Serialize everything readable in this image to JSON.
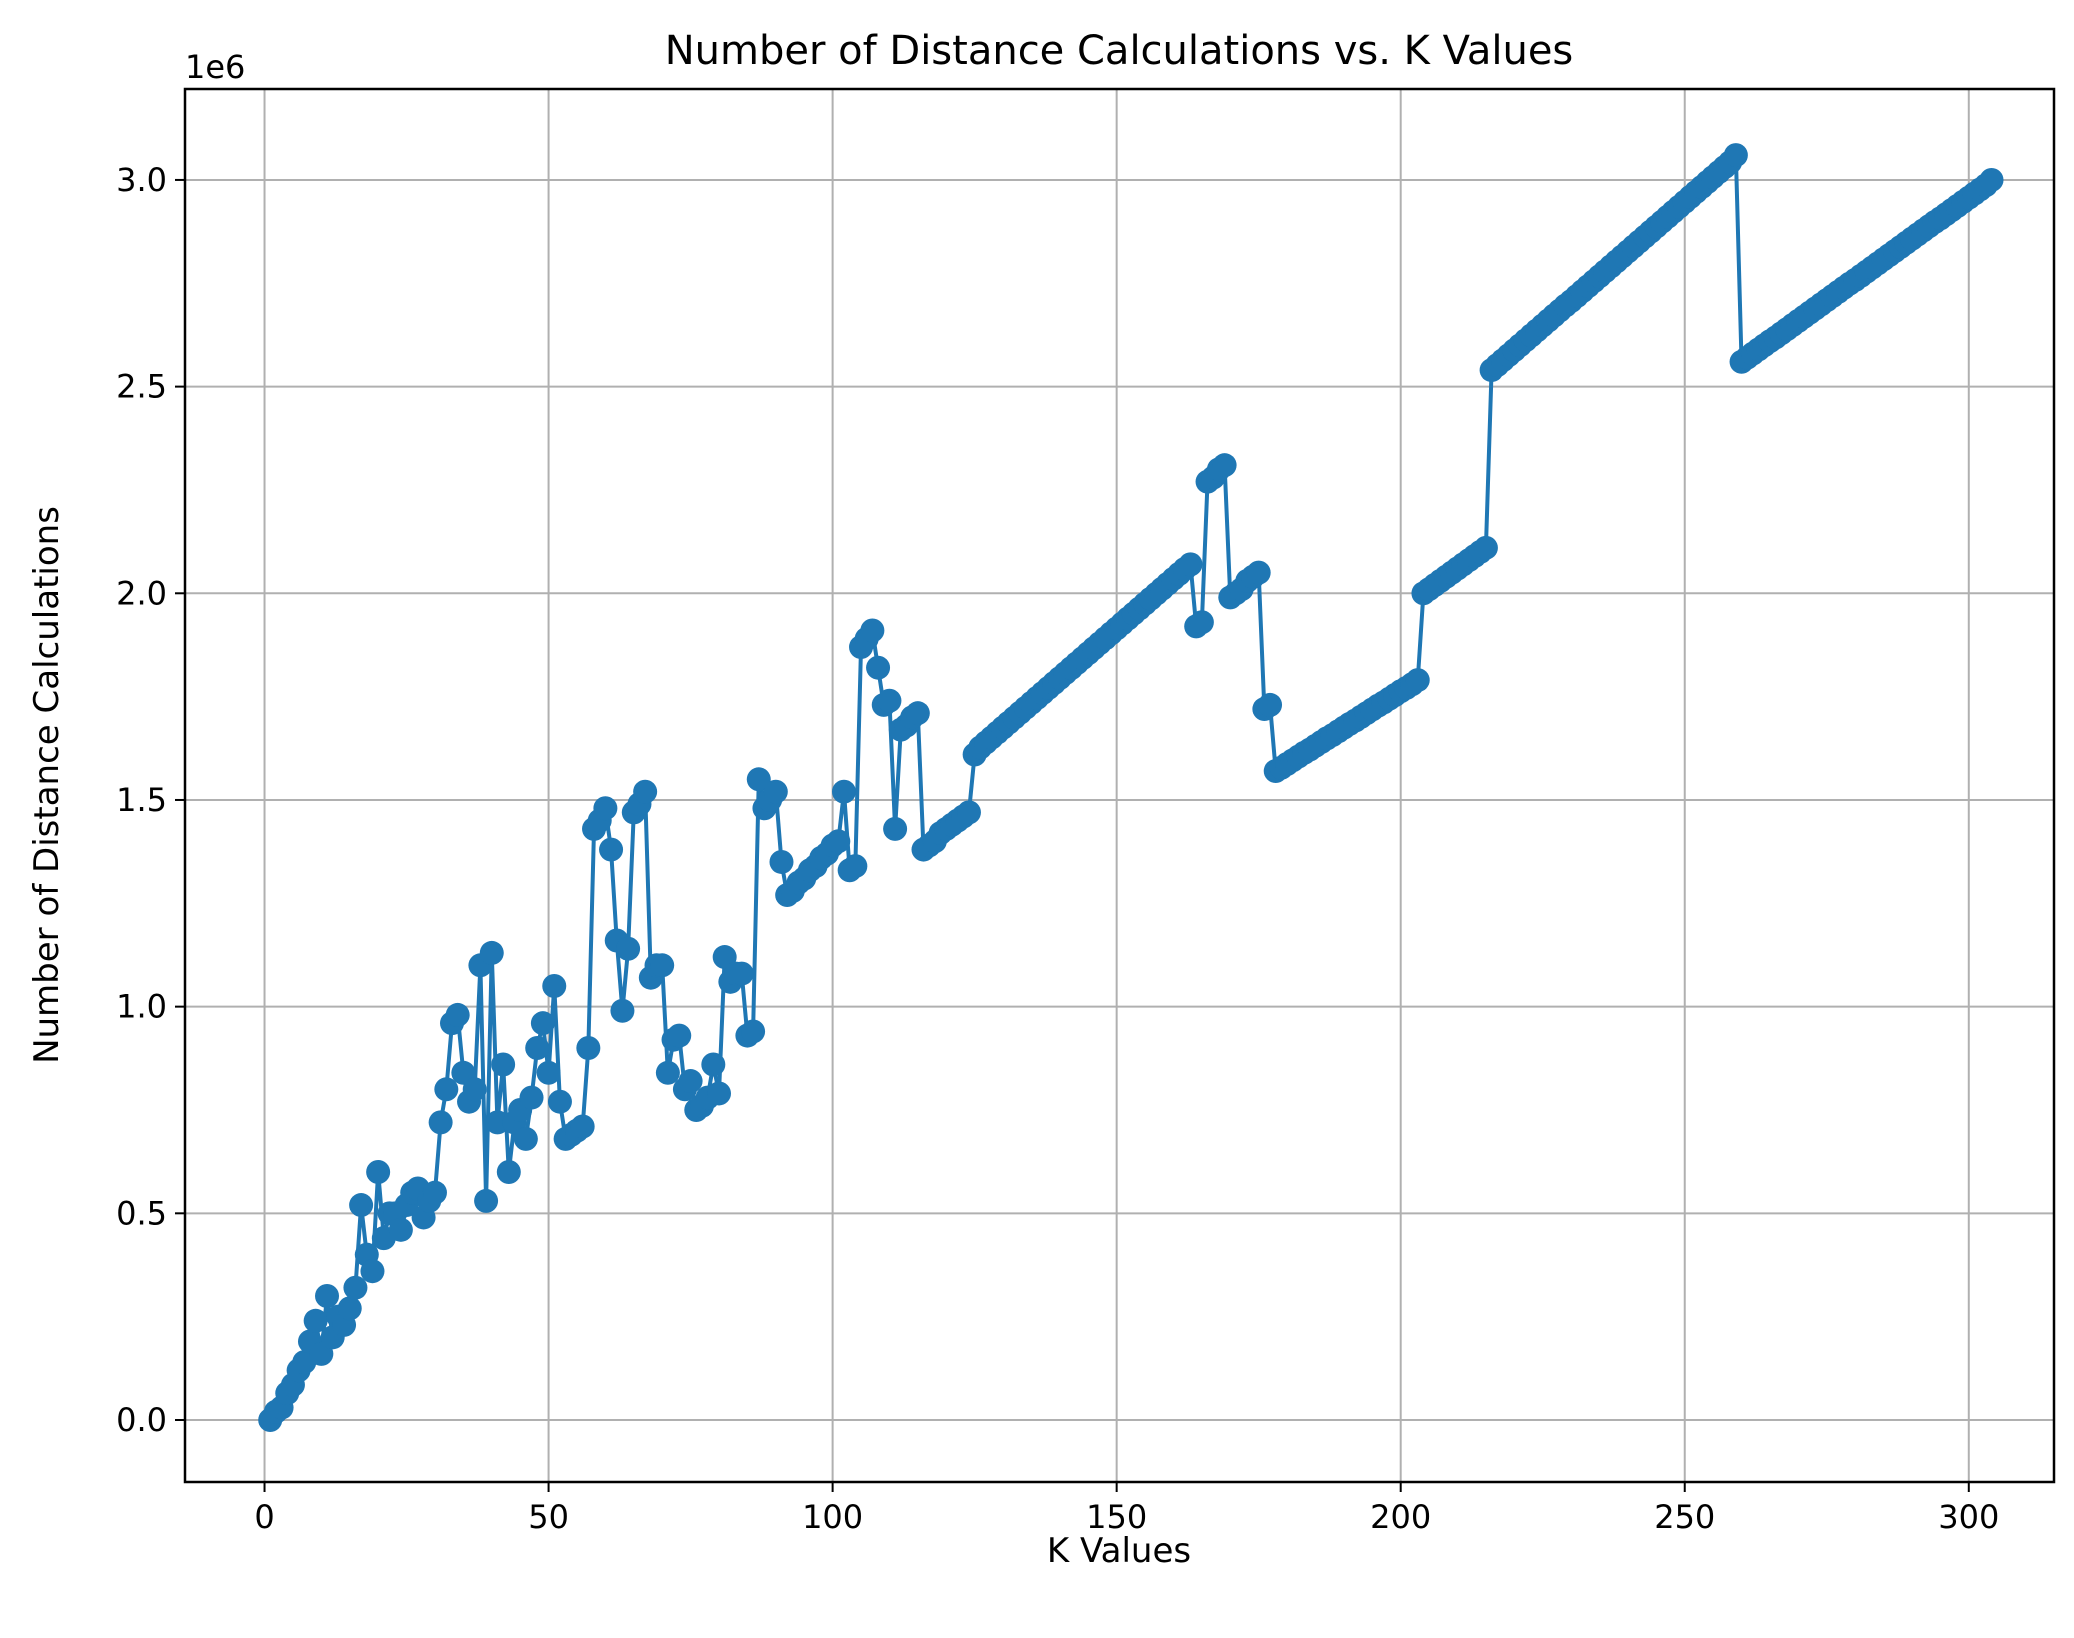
{
  "chart_data": {
    "type": "line",
    "title": "Number of Distance Calculations vs. K Values",
    "xlabel": "K Values",
    "ylabel": "Number of Distance Calculations",
    "y_multiplier": "1e6",
    "xlim": [
      -14,
      315
    ],
    "ylim": [
      -0.15,
      3.22
    ],
    "xticks": [
      0,
      50,
      100,
      150,
      200,
      250,
      300
    ],
    "xtick_labels": [
      "0",
      "50",
      "100",
      "150",
      "200",
      "250",
      "300"
    ],
    "yticks": [
      0.0,
      0.5,
      1.0,
      1.5,
      2.0,
      2.5,
      3.0
    ],
    "ytick_labels": [
      "0.0",
      "0.5",
      "1.0",
      "1.5",
      "2.0",
      "2.5",
      "3.0"
    ],
    "grid": true,
    "line_color": "#1f77b4",
    "marker": "circle",
    "x_range": [
      1,
      300
    ],
    "y_values_in_millions": [
      0.0,
      0.02,
      0.03,
      0.065,
      0.085,
      0.12,
      0.14,
      0.19,
      0.24,
      0.16,
      0.3,
      0.2,
      0.25,
      0.23,
      0.27,
      0.32,
      0.52,
      0.4,
      0.36,
      0.6,
      0.44,
      0.5,
      0.5,
      0.46,
      0.52,
      0.55,
      0.56,
      0.49,
      0.53,
      0.55,
      0.72,
      0.8,
      0.96,
      0.98,
      0.84,
      0.77,
      0.8,
      1.1,
      0.53,
      1.13,
      0.72,
      0.86,
      0.6,
      0.72,
      0.75,
      0.68,
      0.78,
      0.9,
      0.96,
      0.84,
      1.05,
      0.77,
      0.68,
      0.69,
      0.7,
      0.71,
      0.9,
      1.43,
      1.45,
      1.48,
      1.38,
      1.16,
      0.99,
      1.14,
      1.47,
      1.49,
      1.52,
      1.07,
      1.1,
      1.1,
      0.84,
      0.92,
      0.93,
      0.8,
      0.82,
      0.75,
      0.76,
      0.78,
      0.86,
      0.79,
      1.12,
      1.06,
      1.08,
      1.08,
      0.93,
      0.94,
      1.55,
      1.48,
      1.5,
      1.52,
      1.35,
      1.27,
      1.28,
      1.3,
      1.31,
      1.33,
      1.34,
      1.36,
      1.37,
      1.39,
      1.4,
      1.52,
      1.33,
      1.34,
      1.87,
      1.89,
      1.91,
      1.82,
      1.73,
      1.74,
      1.43,
      1.67,
      1.68,
      1.7,
      1.71,
      1.38,
      1.39,
      1.4,
      1.42,
      1.43,
      1.44,
      1.45,
      1.46,
      1.47,
      1.61,
      1.627,
      1.639,
      1.651,
      1.663,
      1.675,
      1.687,
      1.699,
      1.711,
      1.723,
      1.735,
      1.747,
      1.759,
      1.771,
      1.783,
      1.795,
      1.807,
      1.819,
      1.831,
      1.843,
      1.855,
      1.867,
      1.879,
      1.891,
      1.903,
      1.915,
      1.927,
      1.939,
      1.951,
      1.963,
      1.975,
      1.987,
      1.999,
      2.011,
      2.023,
      2.035,
      2.047,
      2.059,
      2.07,
      1.92,
      1.93,
      2.27,
      2.28,
      2.3,
      2.31,
      1.99,
      2.0,
      2.01,
      2.03,
      2.04,
      2.05,
      1.72,
      1.73,
      1.57,
      1.578,
      1.587,
      1.596,
      1.605,
      1.614,
      1.622,
      1.631,
      1.64,
      1.649,
      1.657,
      1.666,
      1.675,
      1.684,
      1.692,
      1.701,
      1.71,
      1.719,
      1.728,
      1.736,
      1.745,
      1.754,
      1.763,
      1.771,
      1.78,
      1.79,
      2.0,
      2.01,
      2.02,
      2.03,
      2.04,
      2.05,
      2.06,
      2.07,
      2.08,
      2.09,
      2.1,
      2.11,
      2.54,
      2.552,
      2.564,
      2.576,
      2.588,
      2.6,
      2.612,
      2.624,
      2.636,
      2.648,
      2.66,
      2.672,
      2.684,
      2.696,
      2.707,
      2.719,
      2.731,
      2.743,
      2.755,
      2.767,
      2.779,
      2.791,
      2.803,
      2.815,
      2.827,
      2.839,
      2.851,
      2.863,
      2.875,
      2.887,
      2.899,
      2.911,
      2.923,
      2.935,
      2.947,
      2.959,
      2.971,
      2.983,
      2.995,
      3.007,
      3.019,
      3.031,
      3.043,
      3.06,
      2.56,
      2.57,
      2.58,
      2.59,
      2.6,
      2.61,
      2.619,
      2.629,
      2.639,
      2.649,
      2.659,
      2.669,
      2.679,
      2.689,
      2.699,
      2.709,
      2.719,
      2.729,
      2.739,
      2.749,
      2.758,
      2.768,
      2.778,
      2.788,
      2.798,
      2.808,
      2.818,
      2.828,
      2.838,
      2.848,
      2.858,
      2.868,
      2.878,
      2.888,
      2.898,
      2.907,
      2.917,
      2.927,
      2.937,
      2.947,
      2.957,
      2.967,
      2.977,
      2.987,
      3.0
    ]
  }
}
